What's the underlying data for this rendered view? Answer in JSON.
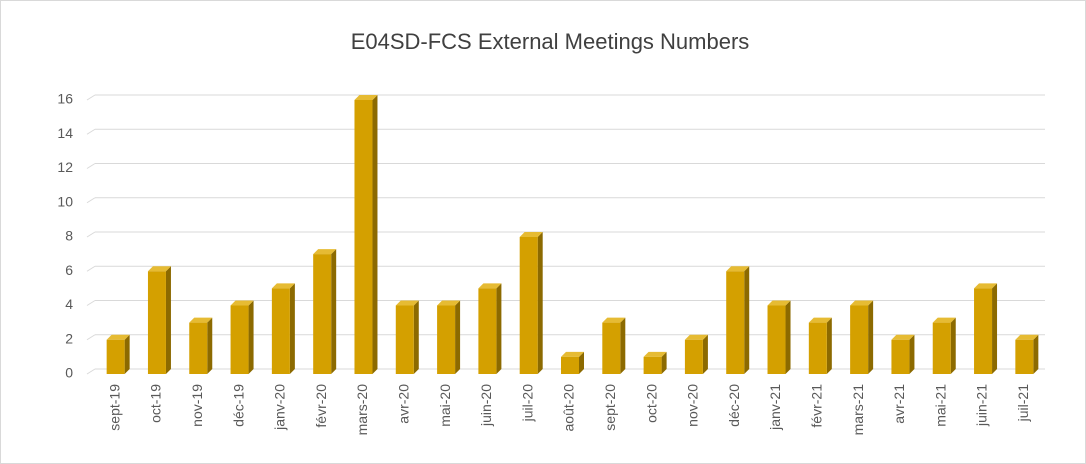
{
  "chart_data": {
    "type": "bar",
    "title": "E04SD-FCS External Meetings Numbers",
    "categories": [
      "sept-19",
      "oct-19",
      "nov-19",
      "déc-19",
      "janv-20",
      "févr-20",
      "mars-20",
      "avr-20",
      "mai-20",
      "juin-20",
      "juil-20",
      "août-20",
      "sept-20",
      "oct-20",
      "nov-20",
      "déc-20",
      "janv-21",
      "févr-21",
      "mars-21",
      "avr-21",
      "mai-21",
      "juin-21",
      "juil-21"
    ],
    "values": [
      2,
      6,
      3,
      4,
      5,
      7,
      16,
      4,
      4,
      5,
      8,
      1,
      3,
      1,
      2,
      6,
      4,
      3,
      4,
      2,
      3,
      5,
      2
    ],
    "color": "#d4a000",
    "ylim": [
      0,
      16
    ],
    "yticks": [
      0,
      2,
      4,
      6,
      8,
      10,
      12,
      14,
      16
    ],
    "grid": true
  }
}
